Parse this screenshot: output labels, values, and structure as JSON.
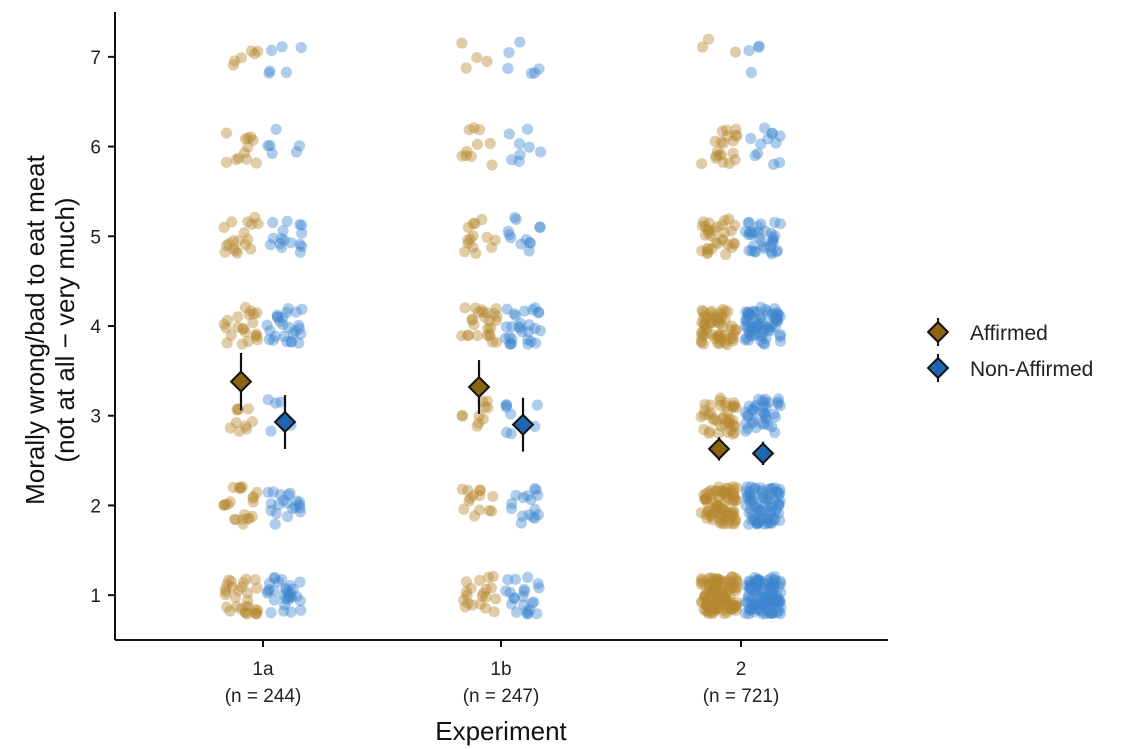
{
  "chart_data": {
    "type": "scatter",
    "subtype": "jittered strip plot with group means and error bars",
    "xlabel": "Experiment",
    "ylabel_lines": [
      "Morally wrong/bad to eat meat",
      "(not at all − very much)"
    ],
    "categories": [
      {
        "label": "1a",
        "n_label": "(n = 244)"
      },
      {
        "label": "1b",
        "n_label": "(n = 247)"
      },
      {
        "label": "2",
        "n_label": "(n = 721)"
      }
    ],
    "yticks": [
      1,
      2,
      3,
      4,
      5,
      6,
      7
    ],
    "ylim": [
      0.5,
      7.5
    ],
    "grid": false,
    "legend": {
      "placement": "right"
    },
    "colors": {
      "Affirmed": "#b5892f",
      "Non-Affirmed": "#3d86cf",
      "Affirmed_mean": "#8a6410",
      "Non-Affirmed_mean": "#1f66b0"
    },
    "series": [
      {
        "name": "Affirmed",
        "means": [
          3.38,
          3.32,
          2.63
        ],
        "ci": [
          [
            3.06,
            3.7
          ],
          [
            3.02,
            3.62
          ],
          [
            2.5,
            2.76
          ]
        ],
        "rating_counts": [
          [
            30,
            22,
            10,
            22,
            18,
            12,
            6
          ],
          [
            20,
            14,
            10,
            26,
            14,
            10,
            4
          ],
          [
            120,
            80,
            40,
            60,
            32,
            20,
            3
          ]
        ]
      },
      {
        "name": "Non-Affirmed",
        "means": [
          2.93,
          2.9,
          2.58
        ],
        "ci": [
          [
            2.63,
            3.23
          ],
          [
            2.6,
            3.2
          ],
          [
            2.45,
            2.71
          ]
        ],
        "rating_counts": [
          [
            30,
            20,
            6,
            26,
            16,
            6,
            6
          ],
          [
            22,
            16,
            8,
            28,
            12,
            8,
            6
          ],
          [
            120,
            80,
            38,
            70,
            34,
            12,
            4
          ]
        ]
      }
    ]
  }
}
